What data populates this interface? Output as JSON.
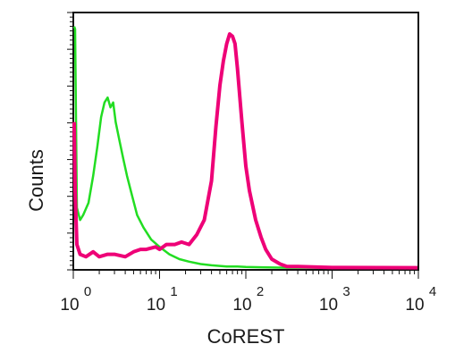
{
  "chart_data": {
    "type": "line",
    "title": "",
    "xlabel": "CoREST",
    "ylabel": "Counts",
    "x_scale": "log",
    "xlim": [
      1,
      10000
    ],
    "ylim": [
      0,
      100
    ],
    "grid": false,
    "x_ticks": [
      {
        "base": "10",
        "exp": "0"
      },
      {
        "base": "10",
        "exp": "1"
      },
      {
        "base": "10",
        "exp": "2"
      },
      {
        "base": "10",
        "exp": "3"
      },
      {
        "base": "10",
        "exp": "4"
      }
    ],
    "series": [
      {
        "color": "#22dd22",
        "x": [
          1.0,
          1.05,
          1.1,
          1.2,
          1.3,
          1.5,
          1.7,
          1.9,
          2.1,
          2.3,
          2.5,
          2.7,
          2.9,
          3.1,
          3.4,
          3.8,
          4.2,
          4.8,
          5.5,
          6.5,
          8,
          10,
          13,
          17,
          22,
          30,
          40,
          60,
          80,
          100,
          150,
          300,
          1000,
          10000
        ],
        "y": [
          99,
          98,
          25,
          20,
          22,
          27,
          38,
          50,
          62,
          68,
          70,
          66,
          68,
          60,
          53,
          45,
          38,
          30,
          22,
          17,
          12,
          9,
          6,
          4,
          3,
          2,
          1.5,
          1,
          1,
          0.8,
          0.7,
          0.5,
          0.5,
          0.5
        ]
      },
      {
        "color": "#ee0077",
        "x": [
          1.0,
          1.05,
          1.1,
          1.2,
          1.4,
          1.7,
          2,
          2.5,
          3,
          4,
          5,
          6,
          7,
          9,
          10,
          12,
          15,
          18,
          22,
          27,
          33,
          40,
          45,
          50,
          55,
          60,
          65,
          70,
          75,
          80,
          90,
          100,
          110,
          130,
          150,
          170,
          200,
          250,
          300,
          400,
          600,
          1000,
          10000
        ],
        "y": [
          60,
          32,
          10,
          6,
          5,
          7,
          5,
          6,
          6,
          5,
          7,
          8,
          8,
          9,
          8,
          10,
          10,
          11,
          10,
          14,
          20,
          36,
          58,
          75,
          85,
          92,
          96,
          95,
          92,
          82,
          60,
          42,
          32,
          20,
          13,
          8,
          4,
          2,
          1,
          1,
          0.8,
          0.6,
          0.5
        ]
      }
    ]
  }
}
